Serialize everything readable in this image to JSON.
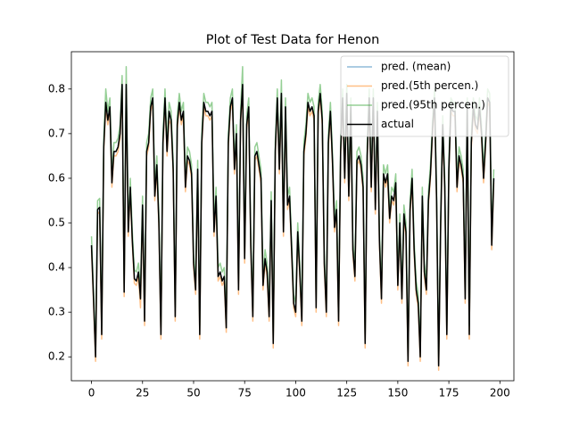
{
  "chart_data": {
    "type": "line",
    "title": "Plot of Test Data for Henon",
    "x": [
      0,
      1,
      2,
      3,
      4,
      5,
      6,
      7,
      8,
      9,
      10,
      11,
      12,
      13,
      14,
      15,
      16,
      17,
      18,
      19,
      20,
      21,
      22,
      23,
      24,
      25,
      26,
      27,
      28,
      29,
      30,
      31,
      32,
      33,
      34,
      35,
      36,
      37,
      38,
      39,
      40,
      41,
      42,
      43,
      44,
      45,
      46,
      47,
      48,
      49,
      50,
      51,
      52,
      53,
      54,
      55,
      56,
      57,
      58,
      59,
      60,
      61,
      62,
      63,
      64,
      65,
      66,
      67,
      68,
      69,
      70,
      71,
      72,
      73,
      74,
      75,
      76,
      77,
      78,
      79,
      80,
      81,
      82,
      83,
      84,
      85,
      86,
      87,
      88,
      89,
      90,
      91,
      92,
      93,
      94,
      95,
      96,
      97,
      98,
      99,
      100,
      101,
      102,
      103,
      104,
      105,
      106,
      107,
      108,
      109,
      110,
      111,
      112,
      113,
      114,
      115,
      116,
      117,
      118,
      119,
      120,
      121,
      122,
      123,
      124,
      125,
      126,
      127,
      128,
      129,
      130,
      131,
      132,
      133,
      134,
      135,
      136,
      137,
      138,
      139,
      140,
      141,
      142,
      143,
      144,
      145,
      146,
      147,
      148,
      149,
      150,
      151,
      152,
      153,
      154,
      155,
      156,
      157,
      158,
      159,
      160,
      161,
      162,
      163,
      164,
      165,
      166,
      167,
      168,
      169,
      170,
      171,
      172,
      173,
      174,
      175,
      176,
      177,
      178,
      179,
      180,
      181,
      182,
      183,
      184,
      185,
      186,
      187,
      188,
      189,
      190,
      191,
      192,
      193,
      194,
      195,
      196,
      197
    ],
    "series": [
      {
        "name": "pred. (mean)",
        "color": "#1f77b4",
        "opacity": 0.5,
        "width": 1.5,
        "values": [
          0.45,
          0.33,
          0.2,
          0.53,
          0.535,
          0.25,
          0.67,
          0.77,
          0.73,
          0.76,
          0.59,
          0.66,
          0.66,
          0.67,
          0.7,
          0.81,
          0.345,
          0.81,
          0.48,
          0.58,
          0.46,
          0.375,
          0.37,
          0.39,
          0.33,
          0.54,
          0.28,
          0.66,
          0.68,
          0.76,
          0.78,
          0.56,
          0.63,
          0.5,
          0.25,
          0.68,
          0.78,
          0.66,
          0.75,
          0.73,
          0.62,
          0.29,
          0.72,
          0.77,
          0.73,
          0.75,
          0.58,
          0.65,
          0.64,
          0.61,
          0.41,
          0.35,
          0.62,
          0.25,
          0.68,
          0.77,
          0.75,
          0.75,
          0.74,
          0.75,
          0.48,
          0.56,
          0.38,
          0.39,
          0.37,
          0.38,
          0.265,
          0.68,
          0.76,
          0.78,
          0.62,
          0.7,
          0.35,
          0.73,
          0.81,
          0.42,
          0.72,
          0.76,
          0.45,
          0.29,
          0.65,
          0.66,
          0.63,
          0.6,
          0.36,
          0.42,
          0.39,
          0.29,
          0.55,
          0.23,
          0.66,
          0.78,
          0.62,
          0.79,
          0.48,
          0.76,
          0.54,
          0.56,
          0.44,
          0.32,
          0.3,
          0.48,
          0.39,
          0.28,
          0.66,
          0.7,
          0.77,
          0.75,
          0.76,
          0.74,
          0.31,
          0.75,
          0.79,
          0.73,
          0.41,
          0.3,
          0.68,
          0.75,
          0.64,
          0.49,
          0.53,
          0.28,
          0.66,
          0.78,
          0.6,
          0.79,
          0.56,
          0.76,
          0.44,
          0.38,
          0.64,
          0.65,
          0.63,
          0.58,
          0.23,
          0.65,
          0.78,
          0.58,
          0.78,
          0.53,
          0.75,
          0.46,
          0.33,
          0.61,
          0.59,
          0.61,
          0.51,
          0.56,
          0.55,
          0.59,
          0.36,
          0.5,
          0.33,
          0.52,
          0.48,
          0.19,
          0.53,
          0.6,
          0.44,
          0.35,
          0.32,
          0.2,
          0.56,
          0.39,
          0.35,
          0.55,
          0.61,
          0.71,
          0.78,
          0.55,
          0.18,
          0.5,
          0.72,
          0.58,
          0.25,
          0.62,
          0.76,
          0.75,
          0.75,
          0.58,
          0.65,
          0.63,
          0.6,
          0.33,
          0.76,
          0.25,
          0.68,
          0.76,
          0.72,
          0.71,
          0.76,
          0.7,
          0.6,
          0.68,
          0.78,
          0.77,
          0.45,
          0.6
        ]
      },
      {
        "name": "pred.(5th percen.)",
        "color": "#ff7f0e",
        "opacity": 0.5,
        "width": 1.5,
        "values": [
          0.44,
          0.32,
          0.19,
          0.52,
          0.525,
          0.24,
          0.66,
          0.76,
          0.72,
          0.75,
          0.58,
          0.65,
          0.65,
          0.66,
          0.69,
          0.8,
          0.335,
          0.8,
          0.47,
          0.57,
          0.45,
          0.365,
          0.36,
          0.38,
          0.31,
          0.53,
          0.27,
          0.65,
          0.67,
          0.75,
          0.77,
          0.55,
          0.62,
          0.49,
          0.24,
          0.67,
          0.77,
          0.65,
          0.73,
          0.72,
          0.61,
          0.28,
          0.71,
          0.76,
          0.72,
          0.74,
          0.57,
          0.64,
          0.63,
          0.6,
          0.4,
          0.34,
          0.61,
          0.24,
          0.67,
          0.76,
          0.74,
          0.74,
          0.73,
          0.74,
          0.47,
          0.55,
          0.37,
          0.38,
          0.36,
          0.37,
          0.255,
          0.67,
          0.75,
          0.77,
          0.61,
          0.69,
          0.34,
          0.72,
          0.8,
          0.41,
          0.71,
          0.75,
          0.44,
          0.28,
          0.64,
          0.65,
          0.62,
          0.59,
          0.35,
          0.41,
          0.38,
          0.28,
          0.54,
          0.22,
          0.65,
          0.77,
          0.61,
          0.78,
          0.47,
          0.75,
          0.53,
          0.55,
          0.43,
          0.31,
          0.29,
          0.47,
          0.38,
          0.27,
          0.65,
          0.69,
          0.76,
          0.74,
          0.75,
          0.73,
          0.3,
          0.74,
          0.78,
          0.72,
          0.4,
          0.29,
          0.67,
          0.74,
          0.63,
          0.48,
          0.52,
          0.27,
          0.65,
          0.77,
          0.59,
          0.78,
          0.55,
          0.75,
          0.43,
          0.37,
          0.63,
          0.64,
          0.62,
          0.57,
          0.22,
          0.64,
          0.77,
          0.57,
          0.77,
          0.52,
          0.74,
          0.45,
          0.32,
          0.6,
          0.58,
          0.6,
          0.5,
          0.55,
          0.54,
          0.58,
          0.35,
          0.49,
          0.32,
          0.51,
          0.47,
          0.18,
          0.52,
          0.59,
          0.43,
          0.34,
          0.31,
          0.19,
          0.55,
          0.38,
          0.34,
          0.54,
          0.6,
          0.7,
          0.77,
          0.54,
          0.17,
          0.49,
          0.71,
          0.57,
          0.24,
          0.61,
          0.75,
          0.74,
          0.74,
          0.57,
          0.64,
          0.62,
          0.59,
          0.32,
          0.75,
          0.24,
          0.67,
          0.75,
          0.71,
          0.7,
          0.75,
          0.69,
          0.59,
          0.67,
          0.77,
          0.76,
          0.44,
          0.59
        ]
      },
      {
        "name": "pred.(95th percen.)",
        "color": "#2ca02c",
        "opacity": 0.5,
        "width": 1.5,
        "values": [
          0.47,
          0.35,
          0.22,
          0.55,
          0.555,
          0.27,
          0.69,
          0.8,
          0.75,
          0.78,
          0.61,
          0.68,
          0.68,
          0.69,
          0.72,
          0.83,
          0.365,
          0.85,
          0.5,
          0.6,
          0.48,
          0.395,
          0.39,
          0.41,
          0.35,
          0.56,
          0.3,
          0.68,
          0.7,
          0.78,
          0.8,
          0.58,
          0.65,
          0.52,
          0.27,
          0.7,
          0.8,
          0.68,
          0.77,
          0.75,
          0.64,
          0.31,
          0.74,
          0.79,
          0.75,
          0.77,
          0.6,
          0.67,
          0.66,
          0.63,
          0.43,
          0.37,
          0.64,
          0.27,
          0.7,
          0.79,
          0.77,
          0.77,
          0.76,
          0.77,
          0.5,
          0.58,
          0.4,
          0.41,
          0.39,
          0.4,
          0.285,
          0.7,
          0.78,
          0.8,
          0.64,
          0.72,
          0.37,
          0.75,
          0.85,
          0.44,
          0.74,
          0.78,
          0.47,
          0.31,
          0.67,
          0.68,
          0.65,
          0.62,
          0.38,
          0.44,
          0.41,
          0.31,
          0.57,
          0.25,
          0.68,
          0.8,
          0.64,
          0.82,
          0.5,
          0.78,
          0.56,
          0.58,
          0.46,
          0.34,
          0.32,
          0.5,
          0.41,
          0.3,
          0.68,
          0.72,
          0.79,
          0.77,
          0.78,
          0.76,
          0.33,
          0.77,
          0.81,
          0.75,
          0.43,
          0.32,
          0.7,
          0.77,
          0.66,
          0.51,
          0.55,
          0.3,
          0.68,
          0.8,
          0.62,
          0.81,
          0.58,
          0.78,
          0.46,
          0.4,
          0.66,
          0.67,
          0.65,
          0.6,
          0.25,
          0.67,
          0.8,
          0.6,
          0.8,
          0.55,
          0.77,
          0.48,
          0.35,
          0.63,
          0.61,
          0.63,
          0.53,
          0.58,
          0.57,
          0.61,
          0.38,
          0.52,
          0.35,
          0.54,
          0.5,
          0.21,
          0.55,
          0.62,
          0.46,
          0.37,
          0.34,
          0.22,
          0.58,
          0.41,
          0.37,
          0.57,
          0.63,
          0.73,
          0.8,
          0.57,
          0.2,
          0.52,
          0.74,
          0.6,
          0.27,
          0.64,
          0.78,
          0.77,
          0.77,
          0.6,
          0.67,
          0.65,
          0.62,
          0.35,
          0.78,
          0.27,
          0.7,
          0.78,
          0.74,
          0.73,
          0.78,
          0.72,
          0.62,
          0.7,
          0.8,
          0.79,
          0.47,
          0.62
        ]
      },
      {
        "name": "actual",
        "color": "#000000",
        "opacity": 1,
        "width": 1.5,
        "values": [
          0.45,
          0.33,
          0.2,
          0.53,
          0.535,
          0.25,
          0.67,
          0.77,
          0.73,
          0.76,
          0.59,
          0.66,
          0.66,
          0.67,
          0.7,
          0.81,
          0.345,
          0.81,
          0.48,
          0.58,
          0.46,
          0.375,
          0.37,
          0.39,
          0.33,
          0.54,
          0.28,
          0.66,
          0.68,
          0.76,
          0.78,
          0.56,
          0.63,
          0.5,
          0.25,
          0.68,
          0.78,
          0.66,
          0.75,
          0.73,
          0.62,
          0.29,
          0.72,
          0.77,
          0.73,
          0.75,
          0.58,
          0.65,
          0.64,
          0.61,
          0.41,
          0.35,
          0.62,
          0.25,
          0.68,
          0.77,
          0.75,
          0.75,
          0.74,
          0.75,
          0.48,
          0.56,
          0.38,
          0.39,
          0.37,
          0.38,
          0.265,
          0.68,
          0.76,
          0.78,
          0.62,
          0.7,
          0.35,
          0.73,
          0.81,
          0.42,
          0.72,
          0.76,
          0.45,
          0.29,
          0.65,
          0.66,
          0.63,
          0.6,
          0.36,
          0.42,
          0.39,
          0.29,
          0.55,
          0.23,
          0.66,
          0.78,
          0.62,
          0.79,
          0.48,
          0.76,
          0.54,
          0.56,
          0.44,
          0.32,
          0.3,
          0.48,
          0.39,
          0.28,
          0.66,
          0.7,
          0.77,
          0.75,
          0.76,
          0.74,
          0.31,
          0.75,
          0.79,
          0.73,
          0.41,
          0.3,
          0.68,
          0.75,
          0.64,
          0.49,
          0.53,
          0.28,
          0.66,
          0.78,
          0.6,
          0.79,
          0.56,
          0.76,
          0.44,
          0.38,
          0.64,
          0.65,
          0.63,
          0.58,
          0.23,
          0.65,
          0.78,
          0.58,
          0.78,
          0.53,
          0.75,
          0.46,
          0.33,
          0.61,
          0.59,
          0.61,
          0.51,
          0.56,
          0.55,
          0.59,
          0.36,
          0.5,
          0.33,
          0.52,
          0.48,
          0.19,
          0.53,
          0.6,
          0.44,
          0.35,
          0.32,
          0.2,
          0.56,
          0.39,
          0.35,
          0.55,
          0.61,
          0.71,
          0.78,
          0.55,
          0.18,
          0.5,
          0.72,
          0.58,
          0.25,
          0.62,
          0.76,
          0.75,
          0.75,
          0.58,
          0.65,
          0.63,
          0.6,
          0.33,
          0.76,
          0.25,
          0.68,
          0.76,
          0.72,
          0.71,
          0.76,
          0.7,
          0.6,
          0.68,
          0.78,
          0.77,
          0.45,
          0.6
        ]
      }
    ],
    "xlim": [
      -9.85,
      206.85
    ],
    "xticks": [
      0,
      25,
      50,
      75,
      100,
      125,
      150,
      175,
      200
    ],
    "ylim": [
      0.1465,
      0.8835
    ],
    "yticks": [
      0.2,
      0.3,
      0.4,
      0.5,
      0.6,
      0.7,
      0.8
    ],
    "legend": "upper right"
  }
}
